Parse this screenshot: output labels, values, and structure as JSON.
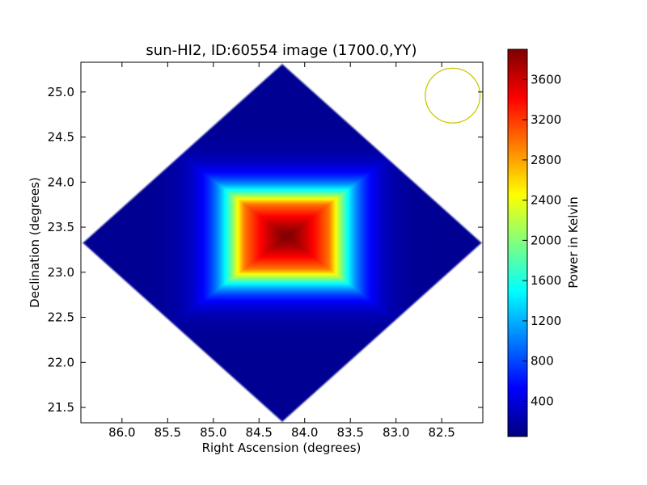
{
  "chart_data": {
    "type": "heatmap",
    "title": "sun-HI2, ID:60554 image (1700.0,YY)",
    "xlabel": "Right Ascension (degrees)",
    "ylabel": "Declination (degrees)",
    "colorbar_label": "Power in Kelvin",
    "colormap": "jet",
    "x_inverted": true,
    "xlim": [
      86.45,
      82.05
    ],
    "ylim": [
      21.33,
      25.33
    ],
    "xticks": [
      "86.0",
      "85.5",
      "85.0",
      "84.5",
      "84.0",
      "83.5",
      "83.0",
      "82.5"
    ],
    "xtick_values": [
      86.0,
      85.5,
      85.0,
      84.5,
      84.0,
      83.5,
      83.0,
      82.5
    ],
    "yticks": [
      "21.5",
      "22.0",
      "22.5",
      "23.0",
      "23.5",
      "24.0",
      "24.5",
      "25.0"
    ],
    "ytick_values": [
      21.5,
      22.0,
      22.5,
      23.0,
      23.5,
      24.0,
      24.5,
      25.0
    ],
    "colorbar_range": [
      50,
      3900
    ],
    "colorbar_ticks": [
      "400",
      "800",
      "1200",
      "1600",
      "2000",
      "2400",
      "2800",
      "3200",
      "3600"
    ],
    "colorbar_tick_values": [
      400,
      800,
      1200,
      1600,
      2000,
      2400,
      2800,
      3200,
      3600
    ],
    "image_footprint": {
      "shape": "diamond",
      "center": [
        84.25,
        23.33
      ],
      "ra_half_extent": 2.2,
      "dec_half_extent": 2.0,
      "background_power": 120
    },
    "hotspot": {
      "center": [
        84.2,
        23.4
      ],
      "peak_power": 3900,
      "ra_half_width": 0.45,
      "dec_half_width": 0.35
    },
    "beam_marker": {
      "center": [
        82.38,
        24.96
      ],
      "radius_deg": 0.3,
      "color": "#c8c800"
    }
  }
}
